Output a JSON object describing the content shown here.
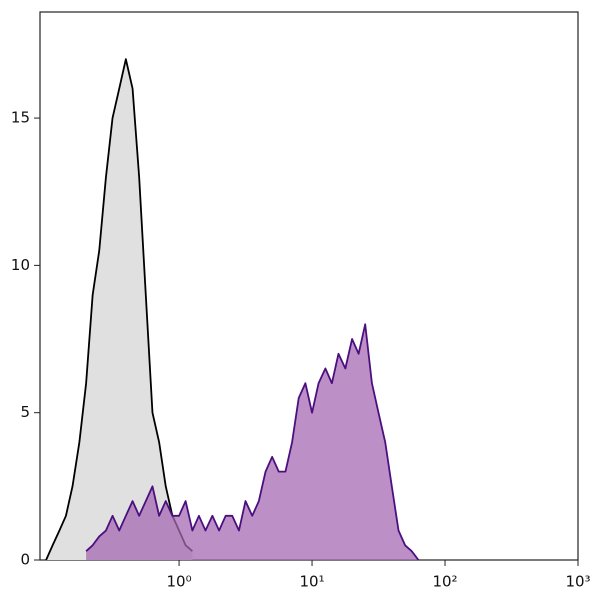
{
  "chart_data": {
    "type": "histogram-overlay",
    "x": [
      0.1,
      0.112,
      0.126,
      0.141,
      0.158,
      0.178,
      0.2,
      0.224,
      0.251,
      0.282,
      0.316,
      0.355,
      0.398,
      0.447,
      0.501,
      0.562,
      0.631,
      0.708,
      0.794,
      0.891,
      1,
      1.12,
      1.26,
      1.41,
      1.58,
      1.78,
      2,
      2.24,
      2.51,
      2.82,
      3.16,
      3.55,
      3.98,
      4.47,
      5.01,
      5.62,
      6.31,
      7.08,
      7.94,
      8.91,
      10,
      11.2,
      12.6,
      14.1,
      15.8,
      17.8,
      20,
      22.4,
      25.1,
      28.2,
      31.6,
      35.5,
      39.8,
      44.7,
      50.1,
      56.2,
      63.1,
      70.8,
      79.4,
      89.1,
      100
    ],
    "series": [
      {
        "color": "#000000",
        "fill": "#e0e0e0",
        "values": [
          0,
          0.5,
          1,
          1.5,
          2.5,
          4,
          6,
          9,
          10.5,
          13,
          15,
          16,
          17,
          16,
          13,
          9,
          5,
          4,
          2.5,
          1.5,
          1,
          0.5,
          0.3,
          null,
          null,
          null,
          null,
          null,
          null,
          null,
          null,
          null,
          null,
          null,
          null,
          null,
          null,
          null,
          null,
          null,
          null,
          null,
          null,
          null,
          null,
          null,
          null,
          null,
          null,
          null,
          null,
          null,
          null,
          null,
          null,
          null,
          null,
          null,
          null,
          null,
          null
        ]
      },
      {
        "color": "#4b0f7f",
        "fill": "#a56bb4",
        "values": [
          null,
          null,
          null,
          null,
          null,
          null,
          0.3,
          0.5,
          0.8,
          1,
          1.5,
          1,
          1.5,
          2,
          1.5,
          2,
          2.5,
          1.5,
          2,
          1.5,
          1.5,
          2,
          1,
          1.5,
          1,
          1.5,
          1,
          1.5,
          1.5,
          1,
          2,
          1.5,
          2,
          3,
          3.5,
          3,
          3,
          4,
          5.5,
          6,
          5,
          6,
          6.5,
          6,
          7,
          6.5,
          7.5,
          7,
          8,
          6,
          5,
          4,
          2.5,
          1,
          0.5,
          0.3,
          0,
          null,
          null,
          null,
          null
        ]
      }
    ],
    "xscale": "log",
    "xlim": [
      0.09,
      1000
    ],
    "xticks": [
      {
        "value": 1,
        "label": "10⁰"
      },
      {
        "value": 10,
        "label": "10¹"
      },
      {
        "value": 100,
        "label": "10²"
      },
      {
        "value": 1000,
        "label": "10³"
      }
    ],
    "ylim": [
      0,
      18.6
    ],
    "yticks": [
      0,
      5,
      10,
      15
    ]
  }
}
